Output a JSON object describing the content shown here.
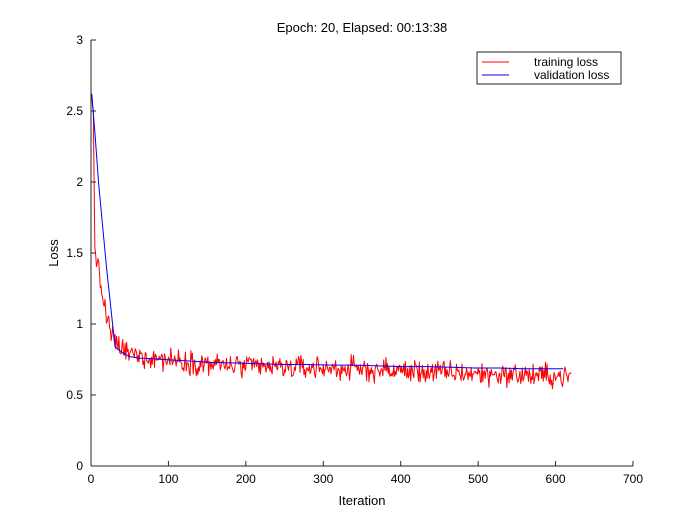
{
  "chart_data": {
    "type": "line",
    "title": "Epoch: 20, Elapsed: 00:13:38",
    "xlabel": "Iteration",
    "ylabel": "Loss",
    "xlim": [
      0,
      700
    ],
    "ylim": [
      0,
      3
    ],
    "xticks": [
      0,
      100,
      200,
      300,
      400,
      500,
      600,
      700
    ],
    "yticks": [
      0,
      0.5,
      1,
      1.5,
      2,
      2.5,
      3
    ],
    "grid": false,
    "legend_position": "top-right",
    "series": [
      {
        "name": "training loss",
        "color": "#ff0000",
        "x_range": [
          0,
          620
        ],
        "x_step": 1,
        "anchor_points": [
          [
            0,
            2.6
          ],
          [
            3,
            2.5
          ],
          [
            5,
            1.55
          ],
          [
            10,
            1.35
          ],
          [
            15,
            1.2
          ],
          [
            20,
            1.05
          ],
          [
            25,
            0.95
          ],
          [
            30,
            0.88
          ],
          [
            40,
            0.82
          ],
          [
            50,
            0.79
          ],
          [
            70,
            0.77
          ],
          [
            100,
            0.75
          ],
          [
            150,
            0.72
          ],
          [
            200,
            0.7
          ],
          [
            300,
            0.69
          ],
          [
            400,
            0.67
          ],
          [
            500,
            0.65
          ],
          [
            620,
            0.63
          ]
        ],
        "noise_amplitude": 0.12
      },
      {
        "name": "validation loss",
        "color": "#0000ff",
        "x": [
          0,
          1,
          5,
          10,
          20,
          31,
          40,
          50,
          62,
          80,
          93,
          124,
          155,
          186,
          217,
          248,
          279,
          310,
          341,
          372,
          403,
          434,
          465,
          496,
          527,
          558,
          589,
          610
        ],
        "y": [
          2.6,
          2.62,
          2.35,
          1.98,
          1.4,
          0.84,
          0.8,
          0.77,
          0.76,
          0.755,
          0.75,
          0.74,
          0.73,
          0.725,
          0.72,
          0.715,
          0.715,
          0.71,
          0.71,
          0.705,
          0.7,
          0.7,
          0.695,
          0.69,
          0.69,
          0.685,
          0.685,
          0.685
        ]
      }
    ]
  }
}
